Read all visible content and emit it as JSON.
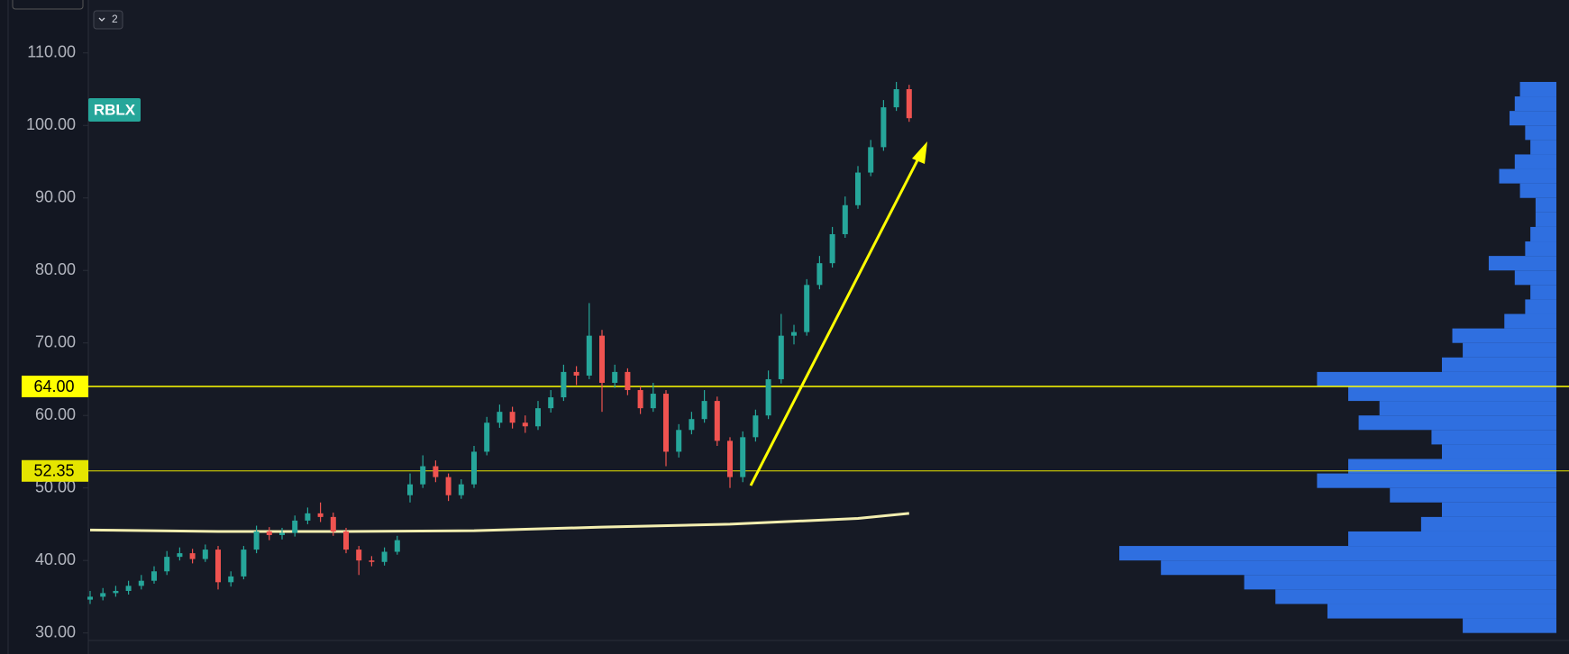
{
  "legend_toggle": "2",
  "chart_data": {
    "type": "candlestick",
    "symbol": "RBLX",
    "up_color": "#26a69a",
    "down_color": "#ef5350",
    "ylim": [
      27.1,
      117.3
    ],
    "yticks": [
      {
        "value": 30,
        "label": "30.00"
      },
      {
        "value": 40,
        "label": "40.00"
      },
      {
        "value": 50,
        "label": "50.00"
      },
      {
        "value": 60,
        "label": "60.00"
      },
      {
        "value": 70,
        "label": "70.00"
      },
      {
        "value": 80,
        "label": "80.00"
      },
      {
        "value": 90,
        "label": "90.00"
      },
      {
        "value": 100,
        "label": "100.00"
      },
      {
        "value": 110,
        "label": "110.00"
      }
    ],
    "open": [
      34.6,
      35.0,
      35.5,
      35.8,
      36.5,
      37.2,
      38.5,
      40.5,
      41.0,
      40.2,
      41.5,
      37.0,
      37.8,
      41.5,
      44.0,
      43.5,
      43.8,
      45.5,
      46.5,
      46.0,
      44.0,
      41.5,
      40.0,
      39.8,
      41.2,
      49.0,
      50.5,
      53.0,
      51.5,
      49.0,
      50.5,
      55.0,
      59.0,
      60.5,
      59.0,
      58.5,
      61.0,
      62.5,
      66.0,
      65.5,
      71.0,
      64.5,
      66.0,
      63.5,
      61.0,
      63.0,
      55.0,
      58.0,
      59.5,
      62.0,
      56.5,
      51.5,
      57.0,
      60.0,
      65.0,
      71.0,
      71.5,
      78.0,
      81.0,
      85.0,
      89.0,
      93.5,
      97.0,
      102.5,
      105.0
    ],
    "high": [
      35.8,
      36.2,
      36.5,
      37.2,
      38.0,
      39.2,
      41.3,
      41.8,
      41.6,
      42.2,
      42.0,
      38.5,
      42.0,
      44.8,
      44.6,
      44.5,
      46.2,
      47.3,
      48.0,
      46.6,
      44.5,
      42.0,
      40.6,
      41.8,
      43.4,
      52.0,
      54.5,
      53.8,
      52.0,
      51.2,
      55.8,
      59.8,
      61.5,
      61.2,
      60.0,
      62.0,
      63.5,
      67.0,
      66.8,
      75.5,
      71.8,
      67.0,
      66.5,
      64.0,
      64.5,
      63.5,
      58.8,
      60.5,
      63.5,
      62.6,
      57.0,
      57.8,
      60.8,
      66.2,
      74.0,
      72.5,
      78.8,
      82.0,
      86.0,
      90.2,
      94.4,
      98.0,
      103.5,
      106.0,
      105.6
    ],
    "low": [
      34.0,
      34.5,
      35.0,
      35.3,
      36.0,
      36.8,
      38.0,
      40.0,
      39.6,
      39.8,
      36.0,
      36.4,
      37.4,
      41.0,
      42.8,
      42.9,
      43.3,
      45.0,
      45.3,
      43.4,
      41.0,
      38.0,
      39.2,
      39.3,
      40.8,
      48.0,
      50.0,
      50.8,
      48.2,
      48.5,
      50.0,
      54.5,
      58.3,
      58.2,
      57.6,
      58.0,
      60.4,
      62.0,
      64.2,
      65.0,
      60.5,
      63.8,
      62.8,
      60.2,
      60.5,
      53.0,
      54.2,
      57.4,
      59.0,
      55.8,
      50.0,
      50.8,
      56.4,
      59.5,
      64.4,
      69.8,
      71.0,
      77.4,
      80.4,
      84.5,
      88.5,
      93.0,
      96.5,
      102.0,
      100.5
    ],
    "close": [
      35.0,
      35.5,
      35.8,
      36.5,
      37.2,
      38.5,
      40.5,
      41.0,
      40.2,
      41.5,
      37.0,
      37.8,
      41.5,
      44.0,
      43.5,
      43.8,
      45.5,
      46.5,
      46.0,
      44.0,
      41.5,
      40.0,
      39.8,
      41.2,
      42.8,
      50.5,
      53.0,
      51.5,
      49.0,
      50.5,
      55.0,
      59.0,
      60.5,
      59.0,
      58.5,
      61.0,
      62.5,
      66.0,
      65.5,
      71.0,
      64.5,
      66.0,
      63.5,
      61.0,
      63.0,
      55.0,
      58.0,
      59.5,
      62.0,
      56.5,
      51.5,
      57.0,
      60.0,
      65.0,
      71.0,
      71.5,
      78.0,
      81.0,
      85.0,
      89.0,
      93.5,
      97.0,
      102.5,
      105.0,
      101.0
    ],
    "moving_average": {
      "color": "#f3eeb0",
      "x": [
        0,
        10,
        20,
        30,
        40,
        50,
        60,
        64
      ],
      "values": [
        44.2,
        44.0,
        44.0,
        44.1,
        44.6,
        45.0,
        45.8,
        46.5
      ]
    },
    "levels": [
      {
        "value": 64,
        "label": "64.00",
        "color": "#ffff00"
      },
      {
        "value": 52.35,
        "label": "52.35",
        "color": "#e5e500"
      }
    ],
    "volume_profile": {
      "color": "#2f6fe0",
      "bins": [
        30,
        32,
        34,
        36,
        38,
        40,
        42,
        44,
        46,
        48,
        50,
        52,
        54,
        56,
        58,
        60,
        62,
        64,
        66,
        68,
        70,
        72,
        74,
        76,
        78,
        80,
        82,
        84,
        86,
        88,
        90,
        92,
        94,
        96,
        98,
        100,
        102,
        104,
        106
      ],
      "values": [
        90,
        220,
        270,
        300,
        380,
        420,
        200,
        130,
        110,
        160,
        230,
        200,
        110,
        120,
        190,
        170,
        200,
        230,
        110,
        90,
        100,
        50,
        30,
        25,
        40,
        65,
        30,
        25,
        20,
        20,
        35,
        55,
        40,
        25,
        30,
        45,
        40,
        35
      ]
    }
  }
}
